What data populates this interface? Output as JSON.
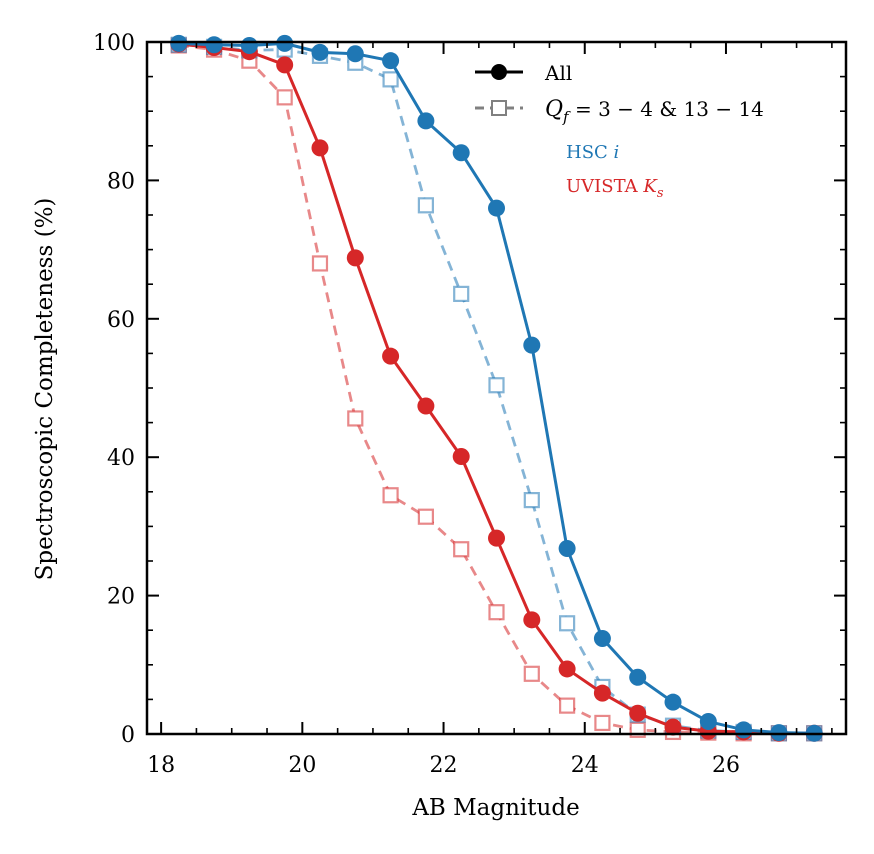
{
  "chart_data": {
    "type": "line",
    "title": "",
    "xlabel": "AB Magnitude",
    "ylabel": "Spectroscopic Completeness (%)",
    "xlim": [
      17.8,
      27.7
    ],
    "ylim": [
      0,
      100
    ],
    "xticks": [
      18,
      20,
      22,
      24,
      26
    ],
    "yticks": [
      0,
      20,
      40,
      60,
      80,
      100
    ],
    "xtick_labels": [
      "18",
      "20",
      "22",
      "24",
      "26"
    ],
    "ytick_labels": [
      "0",
      "20",
      "40",
      "60",
      "80",
      "100"
    ],
    "x": [
      18.25,
      18.75,
      19.25,
      19.75,
      20.25,
      20.75,
      21.25,
      21.75,
      22.25,
      22.75,
      23.25,
      23.75,
      24.25,
      24.75,
      25.25,
      25.75,
      26.25,
      26.75,
      27.25
    ],
    "series": [
      {
        "name": "HSC i — All",
        "band": "hsc",
        "style": "all",
        "color": "#1f77b4",
        "values": [
          99.8,
          99.6,
          99.5,
          99.8,
          98.5,
          98.3,
          97.3,
          88.6,
          84.0,
          76.0,
          56.2,
          26.8,
          13.8,
          8.2,
          4.6,
          1.8,
          0.6,
          0.2,
          0.1
        ]
      },
      {
        "name": "HSC i — Qf = 3−4 & 13−14",
        "band": "hsc",
        "style": "qf",
        "color": "#1f77b4",
        "values": [
          99.6,
          99.3,
          98.8,
          98.9,
          98.0,
          97.0,
          94.6,
          76.4,
          63.6,
          50.4,
          33.8,
          16.0,
          6.8,
          2.8,
          1.2,
          0.5,
          0.3,
          0.1,
          0.1
        ]
      },
      {
        "name": "UVISTA Ks — All",
        "band": "uvista",
        "style": "all",
        "color": "#d62728",
        "values": [
          99.7,
          99.2,
          98.6,
          96.7,
          84.7,
          68.8,
          54.6,
          47.4,
          40.1,
          28.3,
          16.5,
          9.4,
          5.9,
          3.0,
          1.0,
          0.4,
          0.3,
          0.1,
          0.1
        ]
      },
      {
        "name": "UVISTA Ks — Qf = 3−4 & 13−14",
        "band": "uvista",
        "style": "qf",
        "color": "#d62728",
        "values": [
          99.5,
          98.9,
          97.3,
          92.0,
          68.0,
          45.6,
          34.5,
          31.4,
          26.7,
          17.6,
          8.7,
          4.1,
          1.6,
          0.6,
          0.3,
          0.2,
          0.1,
          0.1,
          0.1
        ]
      }
    ],
    "legend": {
      "placement": "top-right",
      "style_entries": [
        {
          "key": "all",
          "label": "All"
        },
        {
          "key": "qf",
          "label_prefix": "Q",
          "label_sub": "f",
          "label_suffix": " = 3 − 4 & 13 − 14"
        }
      ],
      "band_entries": [
        {
          "key": "hsc",
          "label": "HSC ",
          "label_var": "i",
          "color": "#1f77b4"
        },
        {
          "key": "uvista",
          "label": "UVISTA ",
          "label_var": "K",
          "label_var_sub": "s",
          "color": "#d62728"
        }
      ]
    },
    "grid": false
  }
}
